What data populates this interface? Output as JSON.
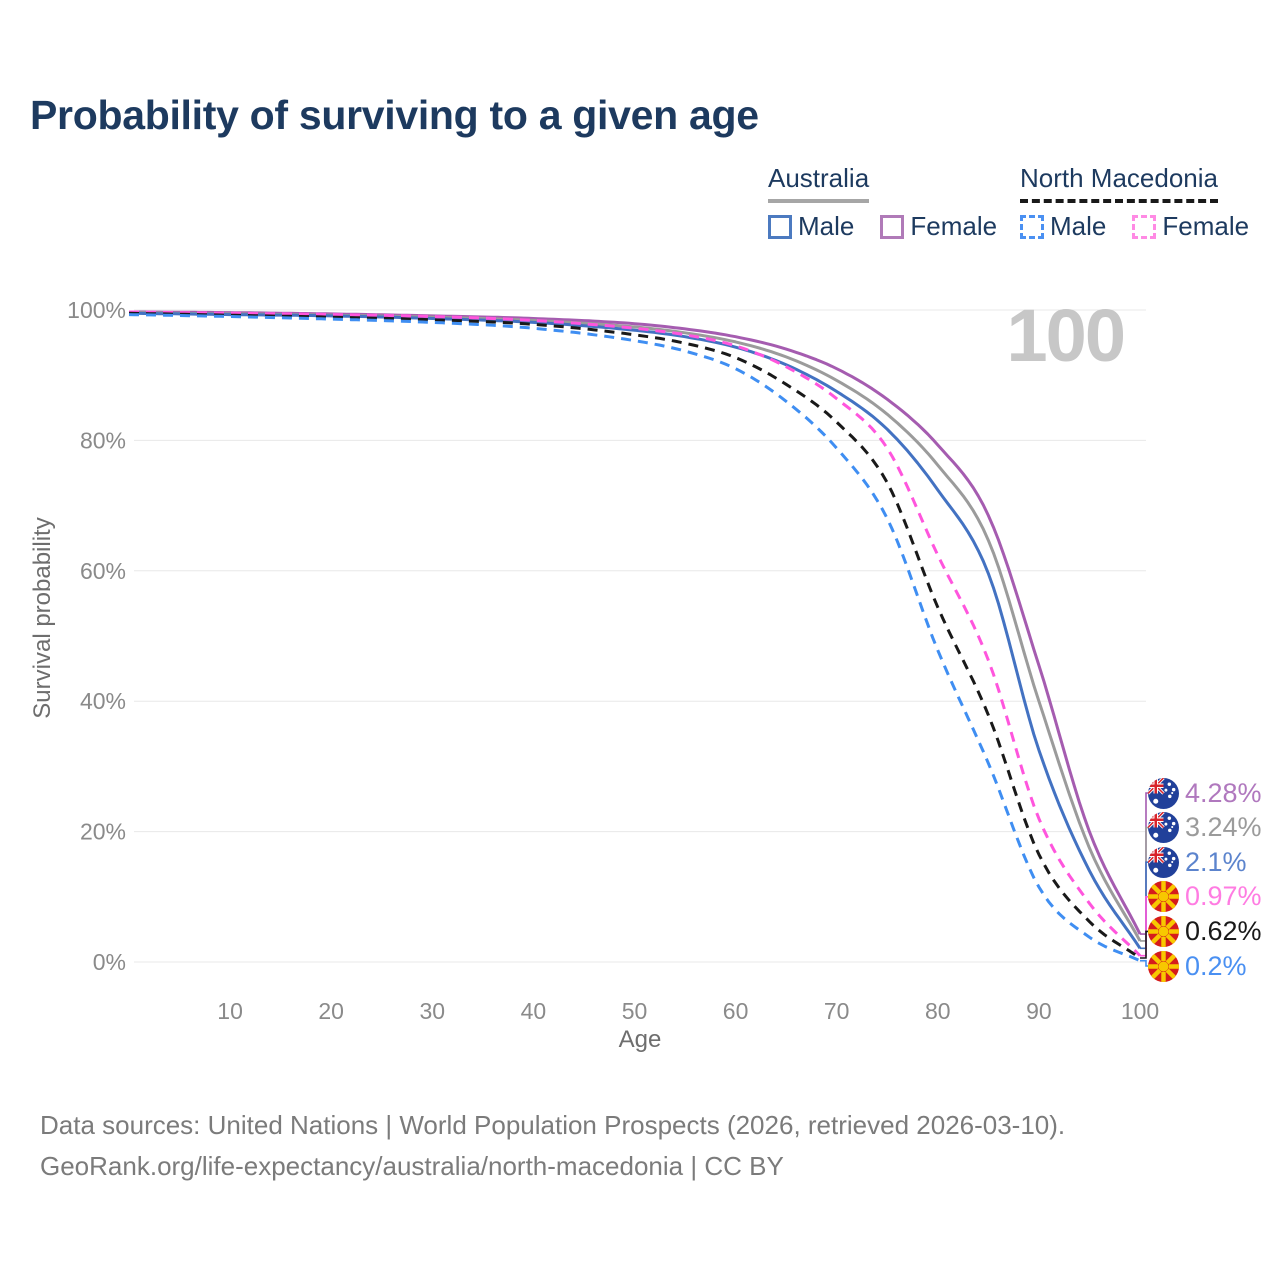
{
  "title": "Probability of surviving to a given age",
  "watermark": "100",
  "legend": {
    "groups": [
      {
        "country": "Australia",
        "line_style": "solid",
        "line_color": "#a6a6a6",
        "items": [
          {
            "label": "Male",
            "swatch_color": "#4c7ac0",
            "dashed": false
          },
          {
            "label": "Female",
            "swatch_color": "#b07ab8",
            "dashed": false
          }
        ]
      },
      {
        "country": "North Macedonia",
        "line_style": "dashed",
        "line_color": "#1a1a1a",
        "items": [
          {
            "label": "Male",
            "swatch_color": "#4a90f2",
            "dashed": true
          },
          {
            "label": "Female",
            "swatch_color": "#ff8ae4",
            "dashed": true
          }
        ]
      }
    ]
  },
  "axes": {
    "x": {
      "label": "Age",
      "ticks": [
        10,
        20,
        30,
        40,
        50,
        60,
        70,
        80,
        90,
        100
      ]
    },
    "y": {
      "label": "Survival probability",
      "ticks": [
        "0%",
        "20%",
        "40%",
        "60%",
        "80%",
        "100%"
      ]
    }
  },
  "end_labels": [
    {
      "text": "4.28%",
      "flag": "australia",
      "color": "#b078be",
      "series": "Australia Female"
    },
    {
      "text": "3.24%",
      "flag": "australia",
      "color": "#9b9b9b",
      "series": "Australia"
    },
    {
      "text": "2.1%",
      "flag": "australia",
      "color": "#5c84cd",
      "series": "Australia Male"
    },
    {
      "text": "0.97%",
      "flag": "north-macedonia",
      "color": "#ff7ce2",
      "series": "North Macedonia Female"
    },
    {
      "text": "0.62%",
      "flag": "north-macedonia",
      "color": "#191919",
      "series": "North Macedonia"
    },
    {
      "text": "0.2%",
      "flag": "north-macedonia",
      "color": "#4a90f2",
      "series": "North Macedonia Male"
    }
  ],
  "footer": {
    "line1": "Data sources: United Nations | World Population Prospects (2026, retrieved 2026-03-10).",
    "line2": "GeoRank.org/life-expectancy/australia/north-macedonia | CC BY"
  },
  "chart_data": {
    "type": "line",
    "title": "Probability of surviving to a given age",
    "xlabel": "Age",
    "ylabel": "Survival probability",
    "xlim": [
      0,
      100
    ],
    "ylim": [
      0,
      100
    ],
    "grid": "horizontal",
    "x": [
      0,
      10,
      20,
      30,
      40,
      50,
      55,
      60,
      65,
      70,
      75,
      80,
      85,
      90,
      95,
      100
    ],
    "series": [
      {
        "name": "Australia Female",
        "color": "#a55cb0",
        "dash": false,
        "end_label": "4.28%",
        "values": [
          99.7,
          99.6,
          99.4,
          99.1,
          98.7,
          97.9,
          97.1,
          95.9,
          94.0,
          91.0,
          86.3,
          79.3,
          68.5,
          45.5,
          20.0,
          4.28
        ]
      },
      {
        "name": "Australia",
        "color": "#9b9b9b",
        "dash": false,
        "end_label": "3.24%",
        "values": [
          99.6,
          99.4,
          99.2,
          98.9,
          98.4,
          97.4,
          96.5,
          95.1,
          92.8,
          89.2,
          84.0,
          76.2,
          64.7,
          40.0,
          17.5,
          3.24
        ]
      },
      {
        "name": "Australia Male",
        "color": "#4372c2",
        "dash": false,
        "end_label": "2.1%",
        "values": [
          99.5,
          99.3,
          99.1,
          98.7,
          98.1,
          96.9,
          95.9,
          94.3,
          91.6,
          87.5,
          81.7,
          72.4,
          59.6,
          32.5,
          14.0,
          2.1
        ]
      },
      {
        "name": "North Macedonia Female",
        "color": "#ff55dd",
        "dash": true,
        "end_label": "0.97%",
        "values": [
          99.7,
          99.5,
          99.3,
          99.0,
          98.4,
          97.2,
          96.2,
          94.5,
          91.3,
          86.4,
          78.8,
          62.4,
          46.3,
          22.0,
          9.0,
          0.97
        ]
      },
      {
        "name": "North Macedonia",
        "color": "#191919",
        "dash": true,
        "end_label": "0.62%",
        "values": [
          99.5,
          99.2,
          98.9,
          98.5,
          97.8,
          96.2,
          94.9,
          92.7,
          88.6,
          82.8,
          73.5,
          54.4,
          37.9,
          16.5,
          6.2,
          0.62
        ]
      },
      {
        "name": "North Macedonia Male",
        "color": "#3f8ef2",
        "dash": true,
        "end_label": "0.2%",
        "values": [
          99.3,
          99.0,
          98.6,
          98.1,
          97.2,
          95.3,
          93.7,
          91.0,
          86.0,
          78.8,
          68.0,
          47.8,
          30.5,
          11.5,
          3.8,
          0.2
        ]
      }
    ]
  }
}
